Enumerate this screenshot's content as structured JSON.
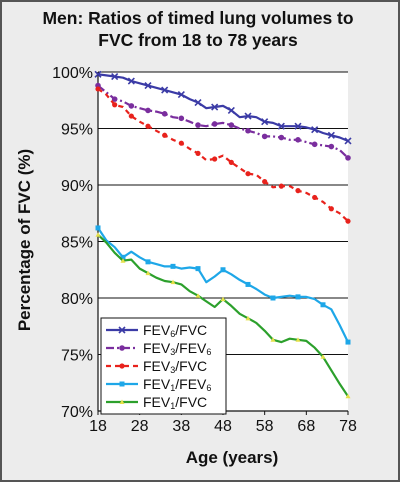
{
  "chart_data": {
    "type": "line",
    "title": [
      "Men: Ratios of timed lung volumes to",
      "FVC from 18 to 78 years"
    ],
    "xlabel": "Age (years)",
    "ylabel": "Percentage of FVC (%)",
    "xlim": [
      18,
      78
    ],
    "ylim": [
      70,
      100
    ],
    "x_ticks": [
      18,
      28,
      38,
      48,
      58,
      68,
      78
    ],
    "y_ticks": [
      70,
      75,
      80,
      85,
      90,
      95,
      100
    ],
    "y_tick_labels": [
      "70%",
      "75%",
      "80%",
      "85%",
      "90%",
      "95%",
      "100%"
    ],
    "grid": "horizontal",
    "legend_position": "bottom-left",
    "series": [
      {
        "name": "FEV6/FVC",
        "legend": [
          {
            "t": "FEV"
          },
          {
            "t": "6",
            "sub": true
          },
          {
            "t": "/FVC"
          }
        ],
        "color": "#3b3ba6",
        "marker": "x",
        "dash": "solid",
        "x": [
          18,
          20,
          22,
          24,
          26,
          28,
          30,
          32,
          34,
          36,
          38,
          40,
          42,
          44,
          46,
          48,
          50,
          52,
          54,
          56,
          58,
          60,
          62,
          64,
          66,
          68,
          70,
          72,
          74,
          76,
          78
        ],
        "y": [
          99.8,
          99.7,
          99.6,
          99.5,
          99.2,
          99.0,
          98.8,
          98.6,
          98.4,
          98.2,
          98.0,
          97.6,
          97.3,
          96.8,
          96.9,
          97.0,
          96.6,
          96.0,
          96.1,
          96.0,
          95.6,
          95.5,
          95.2,
          95.2,
          95.2,
          95.1,
          94.9,
          94.6,
          94.4,
          94.2,
          93.9
        ]
      },
      {
        "name": "FEV3/FEV6",
        "legend": [
          {
            "t": "FEV"
          },
          {
            "t": "3",
            "sub": true
          },
          {
            "t": "/FEV"
          },
          {
            "t": "6",
            "sub": true
          }
        ],
        "color": "#7a2e9e",
        "marker": "circle",
        "dash": "dashdot",
        "x": [
          18,
          20,
          22,
          24,
          26,
          28,
          30,
          32,
          34,
          36,
          38,
          40,
          42,
          44,
          46,
          48,
          50,
          52,
          54,
          56,
          58,
          60,
          62,
          64,
          66,
          68,
          70,
          72,
          74,
          76,
          78
        ],
        "y": [
          98.8,
          98.2,
          97.6,
          97.4,
          97.0,
          96.8,
          96.6,
          96.5,
          96.3,
          96.0,
          95.9,
          95.6,
          95.3,
          95.2,
          95.4,
          95.5,
          95.3,
          95.0,
          94.8,
          94.6,
          94.3,
          94.3,
          94.2,
          94.0,
          94.0,
          93.8,
          93.6,
          93.5,
          93.4,
          93.1,
          92.4
        ]
      },
      {
        "name": "FEV3/FVC",
        "legend": [
          {
            "t": "FEV"
          },
          {
            "t": "3",
            "sub": true
          },
          {
            "t": "/FVC"
          }
        ],
        "color": "#e8221c",
        "marker": "dot",
        "dash": "dashed",
        "x": [
          18,
          20,
          22,
          24,
          26,
          28,
          30,
          32,
          34,
          36,
          38,
          40,
          42,
          44,
          46,
          48,
          50,
          52,
          54,
          56,
          58,
          60,
          62,
          64,
          66,
          68,
          70,
          72,
          74,
          76,
          78
        ],
        "y": [
          98.5,
          98.0,
          97.1,
          96.9,
          96.1,
          95.6,
          95.2,
          94.8,
          94.4,
          94.0,
          93.7,
          93.2,
          92.8,
          92.2,
          92.3,
          92.6,
          92.0,
          91.5,
          91.0,
          90.9,
          90.3,
          89.8,
          89.9,
          89.9,
          89.5,
          89.3,
          88.9,
          88.5,
          87.9,
          87.5,
          86.8
        ]
      },
      {
        "name": "FEV1/FEV6",
        "legend": [
          {
            "t": "FEV"
          },
          {
            "t": "1",
            "sub": true
          },
          {
            "t": "/FEV"
          },
          {
            "t": "6",
            "sub": true
          }
        ],
        "color": "#1ea7e8",
        "marker": "square",
        "dash": "solid",
        "x": [
          18,
          20,
          22,
          24,
          26,
          28,
          30,
          32,
          34,
          36,
          38,
          40,
          42,
          44,
          46,
          48,
          50,
          52,
          54,
          56,
          58,
          60,
          62,
          64,
          66,
          68,
          70,
          72,
          74,
          76,
          78
        ],
        "y": [
          86.2,
          85.1,
          84.5,
          83.6,
          84.1,
          83.6,
          83.2,
          83.0,
          82.8,
          82.8,
          82.6,
          82.7,
          82.6,
          81.4,
          81.9,
          82.5,
          82.1,
          81.6,
          81.2,
          80.8,
          80.3,
          80.0,
          80.1,
          80.2,
          80.1,
          80.1,
          79.9,
          79.4,
          79.0,
          77.6,
          76.1
        ]
      },
      {
        "name": "FEV1/FVC",
        "legend": [
          {
            "t": "FEV"
          },
          {
            "t": "1",
            "sub": true
          },
          {
            "t": "/FVC"
          }
        ],
        "color": "#2ca02c",
        "marker": "tri",
        "dash": "solid",
        "x": [
          18,
          20,
          22,
          24,
          26,
          28,
          30,
          32,
          34,
          36,
          38,
          40,
          42,
          44,
          46,
          48,
          50,
          52,
          54,
          56,
          58,
          60,
          62,
          64,
          66,
          68,
          70,
          72,
          74,
          76,
          78
        ],
        "y": [
          85.6,
          84.9,
          84.0,
          83.3,
          83.4,
          82.6,
          82.2,
          81.8,
          81.5,
          81.4,
          81.2,
          80.6,
          80.2,
          79.7,
          79.2,
          79.9,
          79.3,
          78.6,
          78.2,
          77.8,
          77.1,
          76.3,
          76.1,
          76.4,
          76.3,
          76.2,
          75.6,
          74.8,
          73.6,
          72.4,
          71.3
        ]
      }
    ]
  }
}
